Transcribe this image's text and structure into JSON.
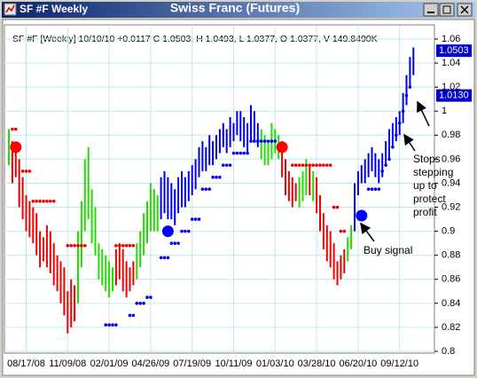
{
  "window_title": "SF #F Weekly",
  "chart_data": {
    "type": "bar",
    "title": "Swiss Franc (Futures)",
    "info": "SF #F [Weekly] 10/10/10 +0.0117 C 1.0503, H 1.0493, L 1.0377, O 1.0377, V 149.8490K",
    "categories": [
      null,
      null,
      null,
      null,
      null,
      "08/17/08",
      null,
      null,
      null,
      null,
      null,
      null,
      null,
      null,
      null,
      null,
      null,
      "11/09/08",
      null,
      null,
      null,
      null,
      null,
      null,
      null,
      null,
      null,
      null,
      null,
      "02/01/09",
      null,
      null,
      null,
      null,
      null,
      null,
      null,
      null,
      null,
      null,
      null,
      "04/26/09",
      null,
      null,
      null,
      null,
      null,
      null,
      null,
      null,
      null,
      null,
      null,
      "07/19/09",
      null,
      null,
      null,
      null,
      null,
      null,
      null,
      null,
      null,
      null,
      null,
      "10/11/09",
      null,
      null,
      null,
      null,
      null,
      null,
      null,
      null,
      null,
      null,
      null,
      "01/03/10",
      null,
      null,
      null,
      null,
      null,
      null,
      null,
      null,
      null,
      null,
      null,
      "03/28/10",
      null,
      null,
      null,
      null,
      null,
      null,
      null,
      null,
      null,
      null,
      null,
      "06/20/10",
      null,
      null,
      null,
      null,
      null,
      null,
      null,
      null,
      null,
      null,
      null,
      "09/12/10",
      null,
      null,
      null,
      null
    ],
    "high": [
      0.985,
      0.975,
      0.97,
      0.96,
      0.945,
      0.93,
      0.925,
      0.92,
      0.915,
      0.9,
      0.895,
      0.905,
      0.9,
      0.89,
      0.88,
      0.875,
      0.87,
      0.85,
      0.86,
      0.855,
      0.9,
      0.925,
      0.96,
      0.97,
      0.935,
      0.92,
      0.89,
      0.885,
      0.88,
      0.875,
      0.87,
      0.885,
      0.89,
      0.885,
      0.875,
      0.87,
      0.875,
      0.89,
      0.9,
      0.915,
      0.925,
      0.94,
      0.935,
      0.93,
      0.945,
      0.95,
      0.945,
      0.94,
      0.935,
      0.945,
      0.95,
      0.945,
      0.95,
      0.955,
      0.96,
      0.97,
      0.975,
      0.97,
      0.98,
      0.975,
      0.98,
      0.985,
      0.99,
      0.985,
      0.995,
      0.99,
      1.0,
      1.0,
      0.995,
      0.99,
      1.005,
      1.0,
      0.99,
      0.985,
      0.98,
      0.975,
      0.99,
      0.985,
      0.98,
      0.975,
      0.96,
      0.95,
      0.945,
      0.94,
      0.945,
      0.95,
      0.96,
      0.955,
      0.95,
      0.945,
      0.93,
      0.915,
      0.905,
      0.9,
      0.89,
      0.875,
      0.88,
      0.885,
      0.895,
      0.905,
      0.94,
      0.95,
      0.955,
      0.96,
      0.965,
      0.97,
      0.965,
      0.96,
      0.965,
      0.975,
      0.985,
      0.99,
      0.995,
      1.0,
      1.015,
      1.03,
      1.045,
      1.053
    ],
    "low": [
      0.955,
      0.94,
      0.945,
      0.92,
      0.91,
      0.9,
      0.895,
      0.89,
      0.88,
      0.87,
      0.875,
      0.87,
      0.865,
      0.855,
      0.85,
      0.84,
      0.83,
      0.815,
      0.82,
      0.825,
      0.84,
      0.87,
      0.9,
      0.91,
      0.89,
      0.88,
      0.86,
      0.855,
      0.85,
      0.845,
      0.85,
      0.855,
      0.86,
      0.85,
      0.845,
      0.85,
      0.855,
      0.86,
      0.87,
      0.88,
      0.89,
      0.9,
      0.9,
      0.9,
      0.91,
      0.915,
      0.91,
      0.91,
      0.905,
      0.915,
      0.92,
      0.92,
      0.925,
      0.93,
      0.935,
      0.945,
      0.95,
      0.95,
      0.955,
      0.955,
      0.96,
      0.965,
      0.97,
      0.965,
      0.97,
      0.975,
      0.98,
      0.975,
      0.97,
      0.965,
      0.975,
      0.975,
      0.97,
      0.96,
      0.955,
      0.955,
      0.96,
      0.965,
      0.96,
      0.945,
      0.93,
      0.925,
      0.92,
      0.925,
      0.92,
      0.925,
      0.93,
      0.93,
      0.925,
      0.915,
      0.9,
      0.885,
      0.875,
      0.87,
      0.86,
      0.855,
      0.86,
      0.865,
      0.875,
      0.885,
      0.9,
      0.93,
      0.94,
      0.94,
      0.945,
      0.95,
      0.945,
      0.94,
      0.945,
      0.955,
      0.96,
      0.97,
      0.975,
      0.98,
      0.99,
      1.005,
      1.02,
      1.03
    ],
    "colors": [
      "#22dd00",
      "#ee0000",
      "#ee0000",
      "#ee0000",
      "#ee0000",
      "#ee0000",
      "#ee0000",
      "#ee0000",
      "#ee0000",
      "#ee0000",
      "#ee0000",
      "#ee0000",
      "#ee0000",
      "#ee0000",
      "#ee0000",
      "#ee0000",
      "#ee0000",
      "#ee0000",
      "#ee0000",
      "#ee0000",
      "#22dd00",
      "#22dd00",
      "#22dd00",
      "#22dd00",
      "#22dd00",
      "#22dd00",
      "#22dd00",
      "#22dd00",
      "#22dd00",
      "#22dd00",
      "#22dd00",
      "#ee0000",
      "#ee0000",
      "#ee0000",
      "#ee0000",
      "#ee0000",
      "#ee0000",
      "#22dd00",
      "#22dd00",
      "#22dd00",
      "#22dd00",
      "#22dd00",
      "#22dd00",
      "#22dd00",
      "#0000ee",
      "#0000ee",
      "#0000ee",
      "#0000ee",
      "#0000ee",
      "#0000ee",
      "#0000ee",
      "#0000ee",
      "#0000ee",
      "#0000ee",
      "#0000ee",
      "#0000ee",
      "#0000ee",
      "#0000ee",
      "#0000ee",
      "#0000ee",
      "#0000ee",
      "#0000ee",
      "#0000ee",
      "#0000ee",
      "#0000ee",
      "#0000ee",
      "#0000ee",
      "#0000ee",
      "#0000ee",
      "#0000ee",
      "#0000ee",
      "#0000ee",
      "#0000ee",
      "#22dd00",
      "#22dd00",
      "#22dd00",
      "#22dd00",
      "#22dd00",
      "#22dd00",
      "#ee0000",
      "#ee0000",
      "#ee0000",
      "#ee0000",
      "#ee0000",
      "#22dd00",
      "#22dd00",
      "#22dd00",
      "#ee0000",
      "#22dd00",
      "#ee0000",
      "#ee0000",
      "#ee0000",
      "#ee0000",
      "#ee0000",
      "#ee0000",
      "#ee0000",
      "#ee0000",
      "#ee0000",
      "#22dd00",
      "#22dd00",
      "#0000ee",
      "#0000ee",
      "#0000ee",
      "#0000ee",
      "#0000ee",
      "#0000ee",
      "#0000ee",
      "#0000ee",
      "#0000ee",
      "#0000ee",
      "#0000ee",
      "#0000ee",
      "#0000ee",
      "#0000ee",
      "#0000ee",
      "#0000ee",
      "#0000ee",
      "#0000ee"
    ],
    "stops": [
      {
        "color": "#ee0000",
        "values": [
          null,
          0.985,
          0.985,
          0.97,
          0.95,
          0.95,
          0.95,
          0.925,
          0.925,
          0.925,
          0.925,
          0.925,
          0.925,
          0.925,
          null,
          null,
          null,
          0.888,
          0.888,
          0.888,
          0.888,
          0.888,
          0.888,
          null,
          null,
          null,
          null,
          null,
          null,
          null,
          null,
          0.888,
          0.888,
          0.888,
          0.888,
          0.888,
          0.888,
          null,
          null,
          null,
          null,
          null,
          null,
          null,
          null,
          null,
          null,
          null,
          null,
          null,
          null,
          null,
          null,
          null,
          null,
          null,
          null,
          null,
          null,
          null,
          null,
          null,
          null,
          null,
          null,
          null,
          null,
          null,
          null,
          null,
          null,
          null,
          null,
          null,
          null,
          null,
          null,
          null,
          null,
          null,
          null,
          null,
          0.955,
          0.955,
          0.955,
          0.955,
          0.955,
          0.955,
          0.955,
          0.955,
          0.955,
          0.955,
          0.955,
          0.955,
          0.92,
          0.92,
          0.9,
          0.9,
          null,
          null,
          null,
          null,
          null,
          null,
          null,
          null,
          null,
          null,
          null,
          null,
          null,
          null,
          null,
          null,
          null,
          null,
          null,
          null
        ]
      },
      {
        "color": "#0000ee",
        "values": [
          null,
          null,
          null,
          null,
          null,
          null,
          null,
          null,
          null,
          null,
          null,
          null,
          null,
          null,
          null,
          null,
          null,
          null,
          null,
          null,
          null,
          null,
          null,
          null,
          null,
          null,
          null,
          null,
          0.822,
          0.822,
          0.822,
          0.822,
          null,
          null,
          null,
          0.83,
          0.83,
          0.84,
          0.84,
          0.84,
          0.845,
          0.845,
          null,
          null,
          0.878,
          0.878,
          0.878,
          0.89,
          0.89,
          0.89,
          0.9,
          0.9,
          0.9,
          0.91,
          0.91,
          0.91,
          0.935,
          0.935,
          0.935,
          0.945,
          0.945,
          0.945,
          0.955,
          0.955,
          0.955,
          0.965,
          0.965,
          0.965,
          0.965,
          0.965,
          0.975,
          0.975,
          0.975,
          0.975,
          0.975,
          0.975,
          0.975,
          0.975,
          null,
          null,
          null,
          null,
          null,
          null,
          null,
          null,
          null,
          null,
          null,
          null,
          null,
          null,
          null,
          null,
          null,
          null,
          null,
          null,
          null,
          null,
          null,
          null,
          null,
          null,
          0.935,
          0.935,
          0.935,
          0.935,
          0.95,
          0.955,
          0.96,
          0.97,
          0.98,
          0.99,
          1.0,
          1.013,
          1.02,
          null
        ]
      }
    ],
    "signals": [
      {
        "week": 2,
        "value": 0.97,
        "color": "#ff0000"
      },
      {
        "week": 46,
        "value": 0.9,
        "color": "#0000ff"
      },
      {
        "week": 79,
        "value": 0.97,
        "color": "#ff0000"
      },
      {
        "week": 102,
        "value": 0.913,
        "color": "#0000ff"
      }
    ],
    "price_tags": [
      1.0503,
      {
        "value": 1.013,
        "label": "1.0130"
      }
    ],
    "annotations": [
      "Buy signal",
      "Stops",
      "stepping",
      "up to",
      "protect",
      "profit"
    ],
    "ylim": [
      0.8,
      1.07
    ],
    "yticks": [
      0.8,
      0.82,
      0.84,
      0.86,
      0.88,
      0.9,
      0.92,
      0.94,
      0.96,
      0.98,
      1,
      1.02,
      1.04,
      1.06
    ],
    "grid": true
  }
}
